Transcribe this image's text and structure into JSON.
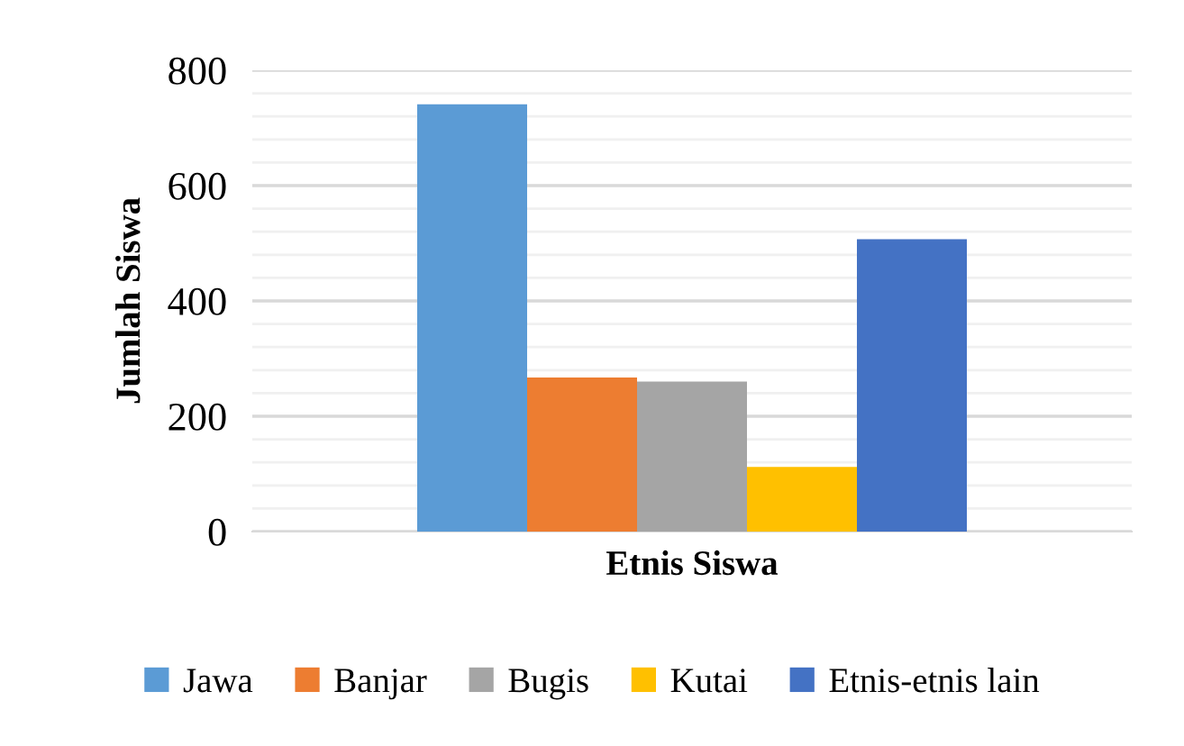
{
  "chart_data": {
    "type": "bar",
    "xlabel": "Etnis Siswa",
    "ylabel": "Jumlah Siswa",
    "categories": [
      null
    ],
    "series": [
      {
        "name": "Jawa",
        "color": "#5b9bd5",
        "values": [
          741
        ]
      },
      {
        "name": "Banjar",
        "color": "#ed7d31",
        "values": [
          267
        ]
      },
      {
        "name": "Bugis",
        "color": "#a5a5a5",
        "values": [
          260
        ]
      },
      {
        "name": "Kutai",
        "color": "#ffc000",
        "values": [
          112
        ]
      },
      {
        "name": "Etnis-etnis lain",
        "color": "#4472c4",
        "values": [
          507
        ]
      }
    ],
    "ylim": [
      0,
      800
    ],
    "yticks": [
      0,
      {
        "value": 40,
        "label": null
      },
      {
        "value": 80,
        "label": null
      },
      {
        "value": 120,
        "label": null
      },
      {
        "value": 160,
        "label": null
      },
      200,
      {
        "value": 240,
        "label": null
      },
      {
        "value": 280,
        "label": null
      },
      {
        "value": 320,
        "label": null
      },
      {
        "value": 360,
        "label": null
      },
      400,
      {
        "value": 440,
        "label": null
      },
      {
        "value": 480,
        "label": null
      },
      {
        "value": 520,
        "label": null
      },
      {
        "value": 560,
        "label": null
      },
      600,
      {
        "value": 640,
        "label": null
      },
      {
        "value": 680,
        "label": null
      },
      {
        "value": 720,
        "label": null
      },
      {
        "value": 760,
        "label": null
      },
      800
    ],
    "grid": "y",
    "legend": "bottom"
  }
}
